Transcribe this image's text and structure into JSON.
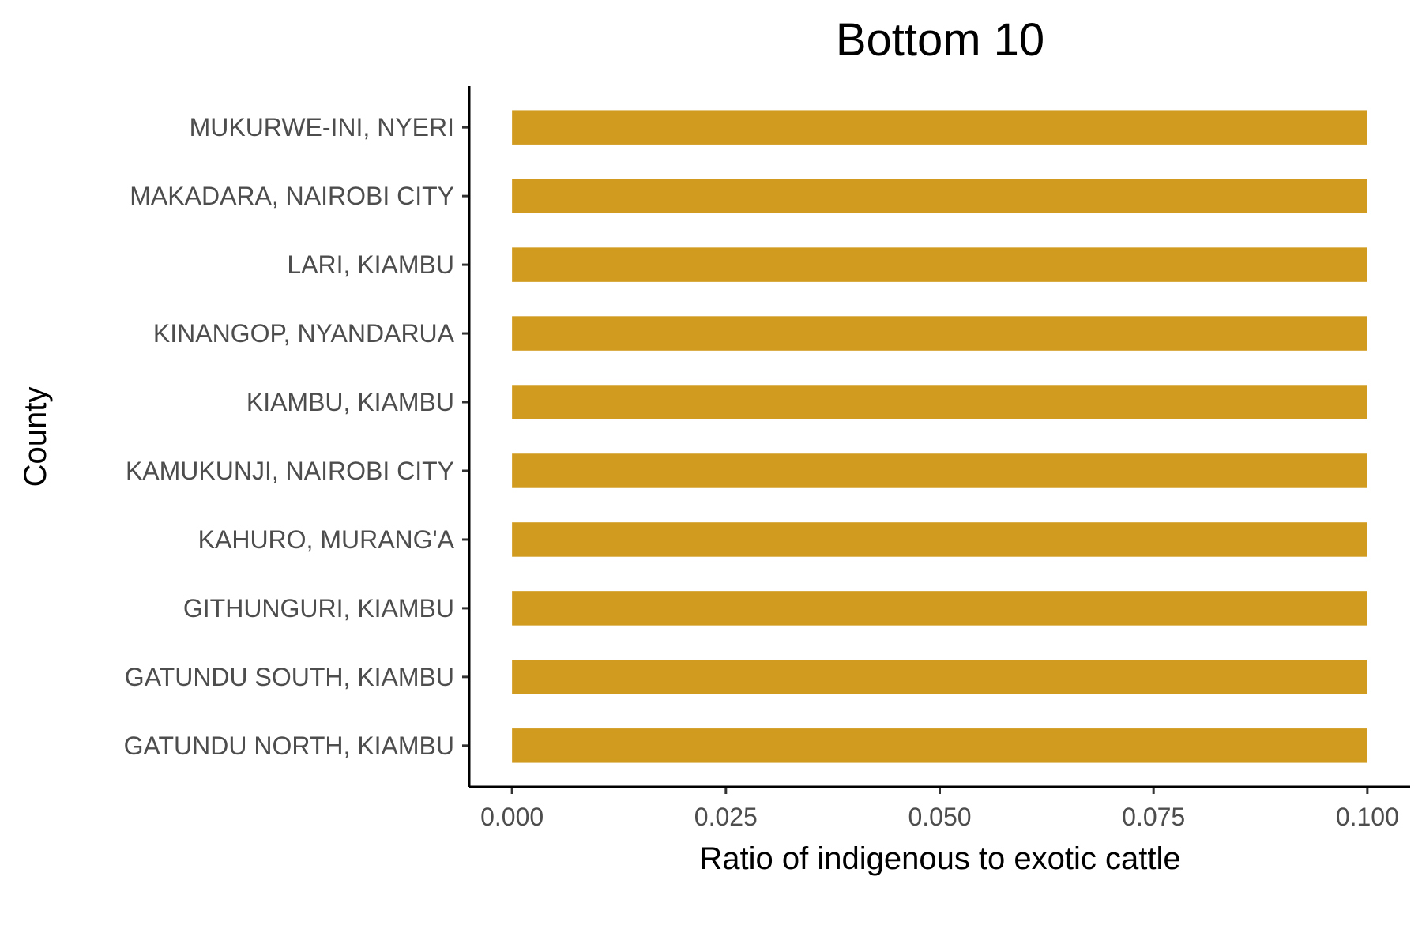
{
  "chart_data": {
    "type": "bar",
    "orientation": "horizontal",
    "title": "Bottom 10",
    "xlabel": "Ratio of indigenous to exotic cattle",
    "ylabel": "County",
    "categories": [
      "MUKURWE-INI, NYERI",
      "MAKADARA, NAIROBI CITY",
      "LARI, KIAMBU",
      "KINANGOP, NYANDARUA",
      "KIAMBU, KIAMBU",
      "KAMUKUNJI, NAIROBI CITY",
      "KAHURO, MURANG'A",
      "GITHUNGURI, KIAMBU",
      "GATUNDU SOUTH, KIAMBU",
      "GATUNDU NORTH, KIAMBU"
    ],
    "values": [
      0.1,
      0.1,
      0.1,
      0.1,
      0.1,
      0.1,
      0.1,
      0.1,
      0.1,
      0.1
    ],
    "xlim": [
      -0.005,
      0.105
    ],
    "xticks": [
      0,
      0.025,
      0.05,
      0.075,
      0.1
    ],
    "xtick_labels": [
      "0.000",
      "0.025",
      "0.050",
      "0.075",
      "0.100"
    ],
    "bar_color": "#D09B1F",
    "grid": false,
    "legend": "none"
  }
}
